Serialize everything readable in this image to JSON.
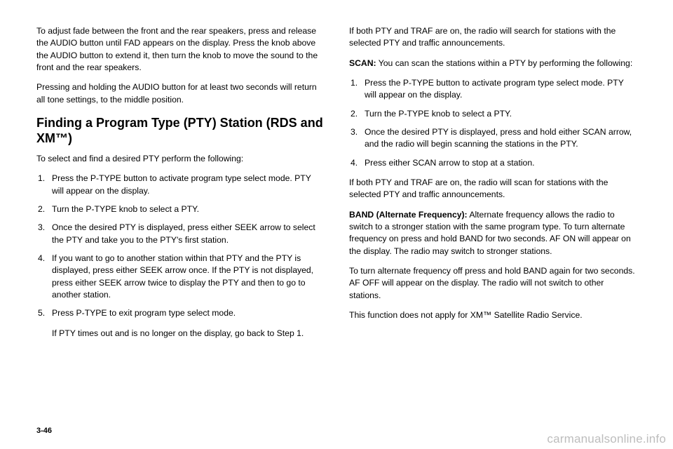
{
  "left": {
    "p1": "To adjust fade between the front and the rear speakers, press and release the AUDIO button until FAD appears on the display. Press the knob above the AUDIO button to extend it, then turn the knob to move the sound to the front and the rear speakers.",
    "p2": "Pressing and holding the AUDIO button for at least two seconds will return all tone settings, to the middle position.",
    "heading": "Finding a Program Type (PTY) Station (RDS and XM™)",
    "p3": "To select and find a desired PTY perform the following:",
    "steps": [
      "Press the P-TYPE button to activate program type select mode. PTY will appear on the display.",
      "Turn the P-TYPE knob to select a PTY.",
      "Once the desired PTY is displayed, press either SEEK arrow to select the PTY and take you to the PTY's first station.",
      "If you want to go to another station within that PTY and the PTY is displayed, press either SEEK arrow once. If the PTY is not displayed, press either SEEK arrow twice to display the PTY and then to go to another station.",
      "Press P-TYPE to exit program type select mode."
    ],
    "stepFollow": "If PTY times out and is no longer on the display, go back to Step 1."
  },
  "right": {
    "p1": "If both PTY and TRAF are on, the radio will search for stations with the selected PTY and traffic announcements.",
    "scanLabel": "SCAN:",
    "scanText": "  You can scan the stations within a PTY by performing the following:",
    "steps": [
      "Press the P-TYPE button to activate program type select mode. PTY will appear on the display.",
      "Turn the P-TYPE knob to select a PTY.",
      "Once the desired PTY is displayed, press and hold either SCAN arrow, and the radio will begin scanning the stations in the PTY.",
      "Press either SCAN arrow to stop at a station."
    ],
    "p2": "If both PTY and TRAF are on, the radio will scan for stations with the selected PTY and traffic announcements.",
    "bandLabel": "BAND (Alternate Frequency):",
    "bandText": "  Alternate frequency allows the radio to switch to a stronger station with the same program type. To turn alternate frequency on press and hold BAND for two seconds. AF ON will appear on the display. The radio may switch to stronger stations.",
    "p3": "To turn alternate frequency off press and hold BAND again for two seconds. AF OFF will appear on the display. The radio will not switch to other stations.",
    "p4": "This function does not apply for XM™ Satellite Radio Service."
  },
  "pageNum": "3-46",
  "watermark": "carmanualsonline.info"
}
